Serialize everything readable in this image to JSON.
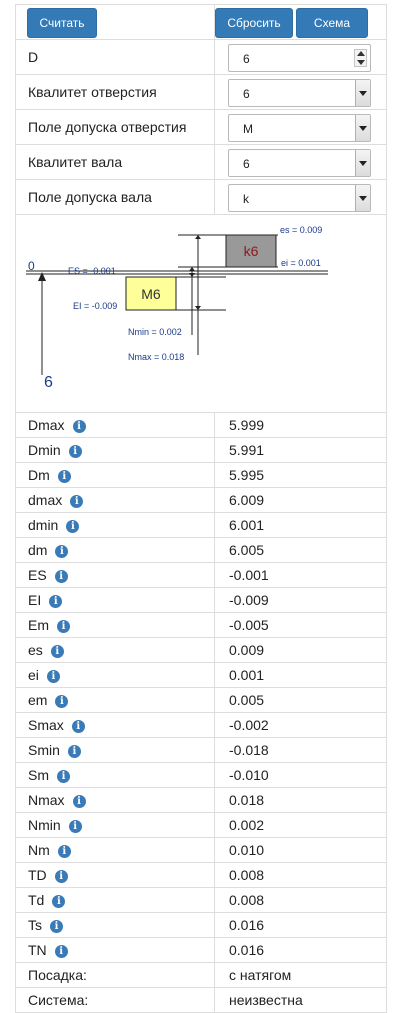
{
  "toolbar": {
    "calc_label": "Считать",
    "reset_label": "Сбросить",
    "scheme_label": "Схема"
  },
  "inputs": [
    {
      "label": "D",
      "value": "6",
      "kind": "number"
    },
    {
      "label": "Квалитет отверстия",
      "value": "6",
      "kind": "select"
    },
    {
      "label": "Поле допуска отверстия",
      "value": "M",
      "kind": "select"
    },
    {
      "label": "Квалитет вала",
      "value": "6",
      "kind": "select"
    },
    {
      "label": "Поле допуска вала",
      "value": "k",
      "kind": "select"
    }
  ],
  "diagram": {
    "zero_label": "0",
    "nominal_label": "6",
    "hole_label": "M6",
    "shaft_label": "k6",
    "ES_text": "ES = -0.001",
    "EI_text": "EI = -0.009",
    "es_text": "es = 0.009",
    "ei_text": "ei = 0.001",
    "nmin_text": "Nmin = 0.002",
    "nmax_text": "Nmax = 0.018",
    "hole_color": "#ffff99",
    "shaft_color": "#999999",
    "label_color": "#1a3a8a",
    "shaft_text_color": "#8b1a1a"
  },
  "results": [
    {
      "label": "Dmax",
      "value": "5.999",
      "info": true
    },
    {
      "label": "Dmin",
      "value": "5.991",
      "info": true
    },
    {
      "label": "Dm",
      "value": "5.995",
      "info": true
    },
    {
      "label": "dmax",
      "value": "6.009",
      "info": true
    },
    {
      "label": "dmin",
      "value": "6.001",
      "info": true
    },
    {
      "label": "dm",
      "value": "6.005",
      "info": true
    },
    {
      "label": "ES",
      "value": "-0.001",
      "info": true
    },
    {
      "label": "EI",
      "value": "-0.009",
      "info": true
    },
    {
      "label": "Em",
      "value": "-0.005",
      "info": true
    },
    {
      "label": "es",
      "value": "0.009",
      "info": true
    },
    {
      "label": "ei",
      "value": "0.001",
      "info": true
    },
    {
      "label": "em",
      "value": "0.005",
      "info": true
    },
    {
      "label": "Smax",
      "value": "-0.002",
      "info": true
    },
    {
      "label": "Smin",
      "value": "-0.018",
      "info": true
    },
    {
      "label": "Sm",
      "value": "-0.010",
      "info": true
    },
    {
      "label": "Nmax",
      "value": "0.018",
      "info": true
    },
    {
      "label": "Nmin",
      "value": "0.002",
      "info": true
    },
    {
      "label": "Nm",
      "value": "0.010",
      "info": true
    },
    {
      "label": "TD",
      "value": "0.008",
      "info": true
    },
    {
      "label": "Td",
      "value": "0.008",
      "info": true
    },
    {
      "label": "Ts",
      "value": "0.016",
      "info": true
    },
    {
      "label": "TN",
      "value": "0.016",
      "info": true
    },
    {
      "label": "Посадка:",
      "value": "с натягом",
      "info": false
    },
    {
      "label": "Система:",
      "value": "неизвестна",
      "info": false
    }
  ],
  "colors": {
    "primary_button": "#337ab7",
    "border": "#dddddd",
    "info_icon": "#3a7ab7"
  }
}
